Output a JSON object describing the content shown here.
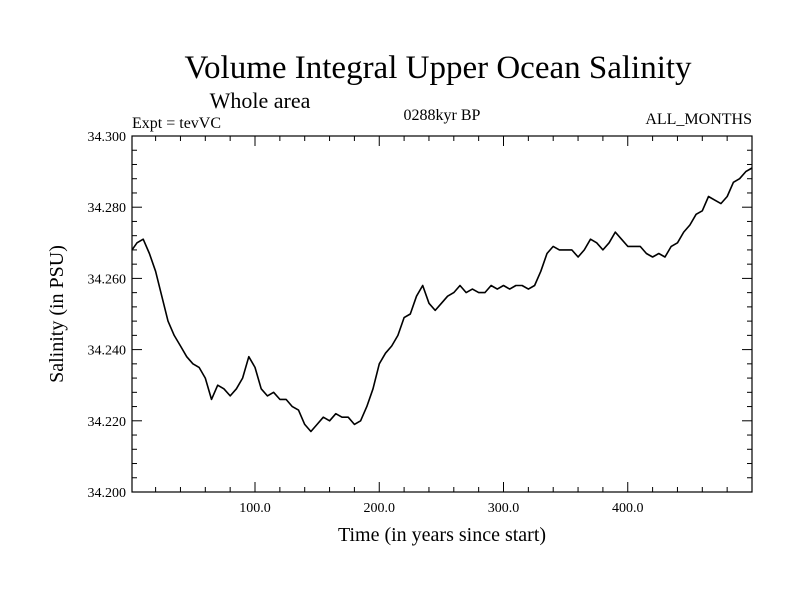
{
  "chart_data": {
    "type": "line",
    "title": "Volume Integral Upper Ocean Salinity",
    "subtitle": "Whole area",
    "experiment_label": "Expt = tevVC",
    "period_label": "0288kyr BP",
    "months_label": "ALL_MONTHS",
    "xlabel": "Time (in years since start)",
    "ylabel": "Salinity (in PSU)",
    "xlim": [
      1,
      500
    ],
    "ylim": [
      34.2,
      34.3
    ],
    "x_ticks": [
      100,
      200,
      300,
      400
    ],
    "x_tick_labels": [
      "100.0",
      "200.0",
      "300.0",
      "400.0"
    ],
    "y_ticks": [
      34.2,
      34.22,
      34.24,
      34.26,
      34.28,
      34.3
    ],
    "y_tick_labels": [
      "34.200",
      "34.220",
      "34.240",
      "34.260",
      "34.280",
      "34.300"
    ],
    "grid": false,
    "line_color": "#000000",
    "series": [
      {
        "x": [
          1,
          5,
          10,
          15,
          20,
          25,
          30,
          35,
          40,
          45,
          50,
          55,
          60,
          65,
          70,
          75,
          80,
          85,
          90,
          95,
          100,
          105,
          110,
          115,
          120,
          125,
          130,
          135,
          140,
          145,
          150,
          155,
          160,
          165,
          170,
          175,
          180,
          185,
          190,
          195,
          200,
          205,
          210,
          215,
          220,
          225,
          230,
          235,
          240,
          245,
          250,
          255,
          260,
          265,
          270,
          275,
          280,
          285,
          290,
          295,
          300,
          305,
          310,
          315,
          320,
          325,
          330,
          335,
          340,
          345,
          350,
          355,
          360,
          365,
          370,
          375,
          380,
          385,
          390,
          395,
          400,
          405,
          410,
          415,
          420,
          425,
          430,
          435,
          440,
          445,
          450,
          455,
          460,
          465,
          470,
          475,
          480,
          485,
          490,
          495,
          500
        ],
        "y": [
          34.268,
          34.27,
          34.271,
          34.267,
          34.262,
          34.255,
          34.248,
          34.244,
          34.241,
          34.238,
          34.236,
          34.235,
          34.232,
          34.226,
          34.23,
          34.229,
          34.227,
          34.229,
          34.232,
          34.238,
          34.235,
          34.229,
          34.227,
          34.228,
          34.226,
          34.226,
          34.224,
          34.223,
          34.219,
          34.217,
          34.219,
          34.221,
          34.22,
          34.222,
          34.221,
          34.221,
          34.219,
          34.22,
          34.224,
          34.229,
          34.236,
          34.239,
          34.241,
          34.244,
          34.249,
          34.25,
          34.255,
          34.258,
          34.253,
          34.251,
          34.253,
          34.255,
          34.256,
          34.258,
          34.256,
          34.257,
          34.256,
          34.256,
          34.258,
          34.257,
          34.258,
          34.257,
          34.258,
          34.258,
          34.257,
          34.258,
          34.262,
          34.267,
          34.269,
          34.268,
          34.268,
          34.268,
          34.266,
          34.268,
          34.271,
          34.27,
          34.268,
          34.27,
          34.273,
          34.271,
          34.269,
          34.269,
          34.269,
          34.267,
          34.266,
          34.267,
          34.266,
          34.269,
          34.27,
          34.273,
          34.275,
          34.278,
          34.279,
          34.283,
          34.282,
          34.281,
          34.283,
          34.287,
          34.288,
          34.29,
          34.291
        ]
      }
    ]
  }
}
